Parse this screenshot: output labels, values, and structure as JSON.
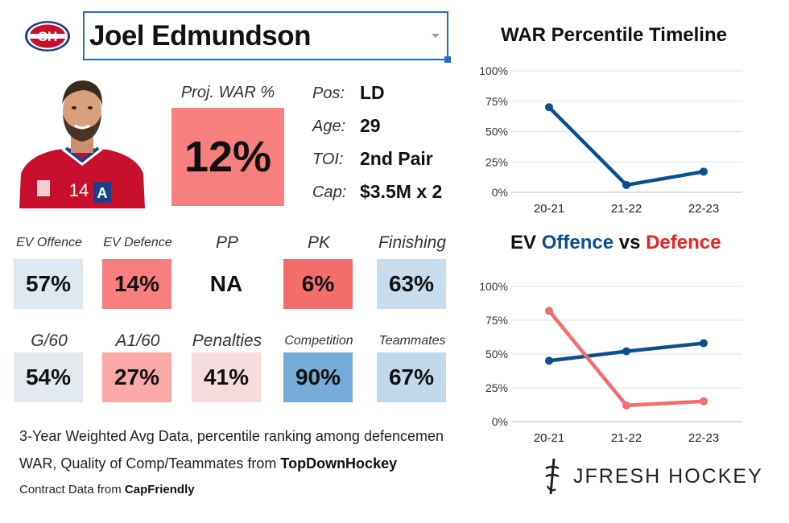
{
  "header": {
    "player_name": "Joel Edmundson",
    "team_logo_text": "CH"
  },
  "projection": {
    "label": "Proj. WAR %",
    "value": "12%"
  },
  "info": [
    {
      "label": "Pos:",
      "value": "LD"
    },
    {
      "label": "Age:",
      "value": "29"
    },
    {
      "label": "TOI:",
      "value": "2nd Pair"
    },
    {
      "label": "Cap:",
      "value": "$3.5M x 2"
    }
  ],
  "stats_row1": [
    {
      "label": "EV Offence",
      "value": "57%",
      "color": "#dde8f1"
    },
    {
      "label": "EV Defence",
      "value": "14%",
      "color": "#f7807e"
    },
    {
      "label": "PP",
      "value": "NA",
      "color": "#ffffff"
    },
    {
      "label": "PK",
      "value": "6%",
      "color": "#f26d6b"
    },
    {
      "label": "Finishing",
      "value": "63%",
      "color": "#c7dcec"
    }
  ],
  "stats_row2": [
    {
      "label": "G/60",
      "value": "54%",
      "color": "#e2e9ef"
    },
    {
      "label": "A1/60",
      "value": "27%",
      "color": "#f9a9a8"
    },
    {
      "label": "Penalties",
      "value": "41%",
      "color": "#f6dcdc"
    },
    {
      "label": "Competition",
      "value": "90%",
      "color": "#77acd9"
    },
    {
      "label": "Teammates",
      "value": "67%",
      "color": "#c1d9eb"
    }
  ],
  "notes": {
    "line1": "3-Year Weighted Avg Data, percentile ranking among defencemen",
    "line2_prefix": "WAR, Quality of Comp/Teammates from ",
    "line2_source": "TopDownHockey",
    "line3_prefix": "Contract Data from ",
    "line3_source": "CapFriendly"
  },
  "chart_data": [
    {
      "type": "line",
      "title": "WAR Percentile Timeline",
      "categories": [
        "20-21",
        "21-22",
        "22-23"
      ],
      "series": [
        {
          "name": "WAR Percentile",
          "values": [
            70,
            6,
            17
          ],
          "color": "#0b4f8f"
        }
      ],
      "ylim": [
        0,
        100
      ],
      "yticks": [
        "0%",
        "25%",
        "50%",
        "75%",
        "100%"
      ]
    },
    {
      "type": "line",
      "title_parts": [
        {
          "text": "EV ",
          "color": "#111111"
        },
        {
          "text": "Offence",
          "color": "#0b4f8f"
        },
        {
          "text": " vs ",
          "color": "#111111"
        },
        {
          "text": "Defence",
          "color": "#ed2124"
        }
      ],
      "categories": [
        "20-21",
        "21-22",
        "22-23"
      ],
      "series": [
        {
          "name": "Offence",
          "values": [
            45,
            52,
            58
          ],
          "color": "#0b4f8f"
        },
        {
          "name": "Defence",
          "values": [
            82,
            12,
            15
          ],
          "color": "#f26d6b"
        }
      ],
      "ylim": [
        0,
        100
      ],
      "yticks": [
        "0%",
        "25%",
        "50%",
        "75%",
        "100%"
      ]
    }
  ],
  "brand": {
    "text": "JFRESH HOCKEY"
  }
}
